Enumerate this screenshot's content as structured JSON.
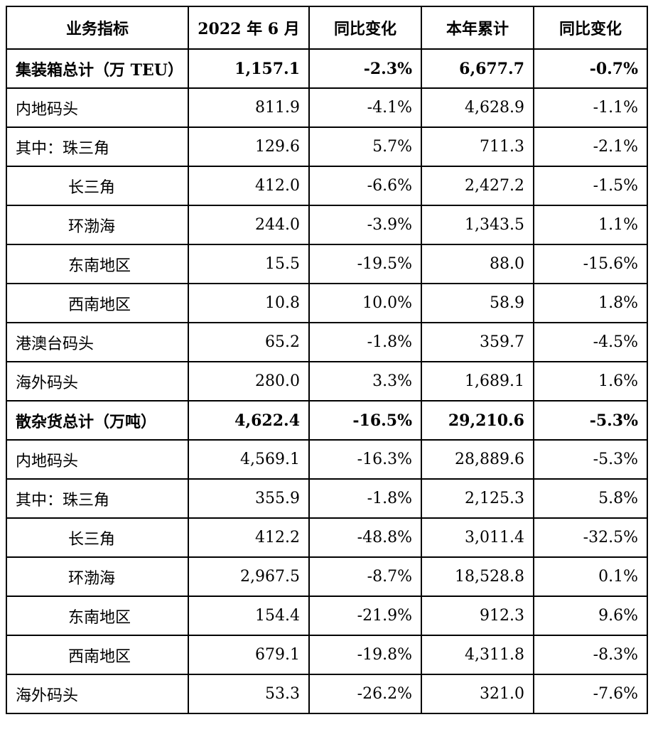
{
  "table": {
    "headers": [
      "业务指标",
      "2022 年 6 月",
      "同比变化",
      "本年累计",
      "同比变化"
    ],
    "rows": [
      {
        "label": "集装箱总计（万 TEU）",
        "month": "1,157.1",
        "yoy_month": "-2.3%",
        "ytd": "6,677.7",
        "yoy_ytd": "-0.7%"
      },
      {
        "label": "内地码头",
        "month": "811.9",
        "yoy_month": "-4.1%",
        "ytd": "4,628.9",
        "yoy_ytd": "-1.1%"
      },
      {
        "label": "其中：珠三角",
        "month": "129.6",
        "yoy_month": "5.7%",
        "ytd": "711.3",
        "yoy_ytd": "-2.1%"
      },
      {
        "label": "长三角",
        "month": "412.0",
        "yoy_month": "-6.6%",
        "ytd": "2,427.2",
        "yoy_ytd": "-1.5%"
      },
      {
        "label": "环渤海",
        "month": "244.0",
        "yoy_month": "-3.9%",
        "ytd": "1,343.5",
        "yoy_ytd": "1.1%"
      },
      {
        "label": "东南地区",
        "month": "15.5",
        "yoy_month": "-19.5%",
        "ytd": "88.0",
        "yoy_ytd": "-15.6%"
      },
      {
        "label": "西南地区",
        "month": "10.8",
        "yoy_month": "10.0%",
        "ytd": "58.9",
        "yoy_ytd": "1.8%"
      },
      {
        "label": "港澳台码头",
        "month": "65.2",
        "yoy_month": "-1.8%",
        "ytd": "359.7",
        "yoy_ytd": "-4.5%"
      },
      {
        "label": "海外码头",
        "month": "280.0",
        "yoy_month": "3.3%",
        "ytd": "1,689.1",
        "yoy_ytd": "1.6%"
      },
      {
        "label": "散杂货总计（万吨）",
        "month": "4,622.4",
        "yoy_month": "-16.5%",
        "ytd": "29,210.6",
        "yoy_ytd": "-5.3%"
      },
      {
        "label": "内地码头",
        "month": "4,569.1",
        "yoy_month": "-16.3%",
        "ytd": "28,889.6",
        "yoy_ytd": "-5.3%"
      },
      {
        "label": "其中：珠三角",
        "month": "355.9",
        "yoy_month": "-1.8%",
        "ytd": "2,125.3",
        "yoy_ytd": "5.8%"
      },
      {
        "label": "长三角",
        "month": "412.2",
        "yoy_month": "-48.8%",
        "ytd": "3,011.4",
        "yoy_ytd": "-32.5%"
      },
      {
        "label": "环渤海",
        "month": "2,967.5",
        "yoy_month": "-8.7%",
        "ytd": "18,528.8",
        "yoy_ytd": "0.1%"
      },
      {
        "label": "东南地区",
        "month": "154.4",
        "yoy_month": "-21.9%",
        "ytd": "912.3",
        "yoy_ytd": "9.6%"
      },
      {
        "label": "西南地区",
        "month": "679.1",
        "yoy_month": "-19.8%",
        "ytd": "4,311.8",
        "yoy_ytd": "-8.3%"
      },
      {
        "label": "海外码头",
        "month": "53.3",
        "yoy_month": "-26.2%",
        "ytd": "321.0",
        "yoy_ytd": "-7.6%"
      }
    ]
  }
}
